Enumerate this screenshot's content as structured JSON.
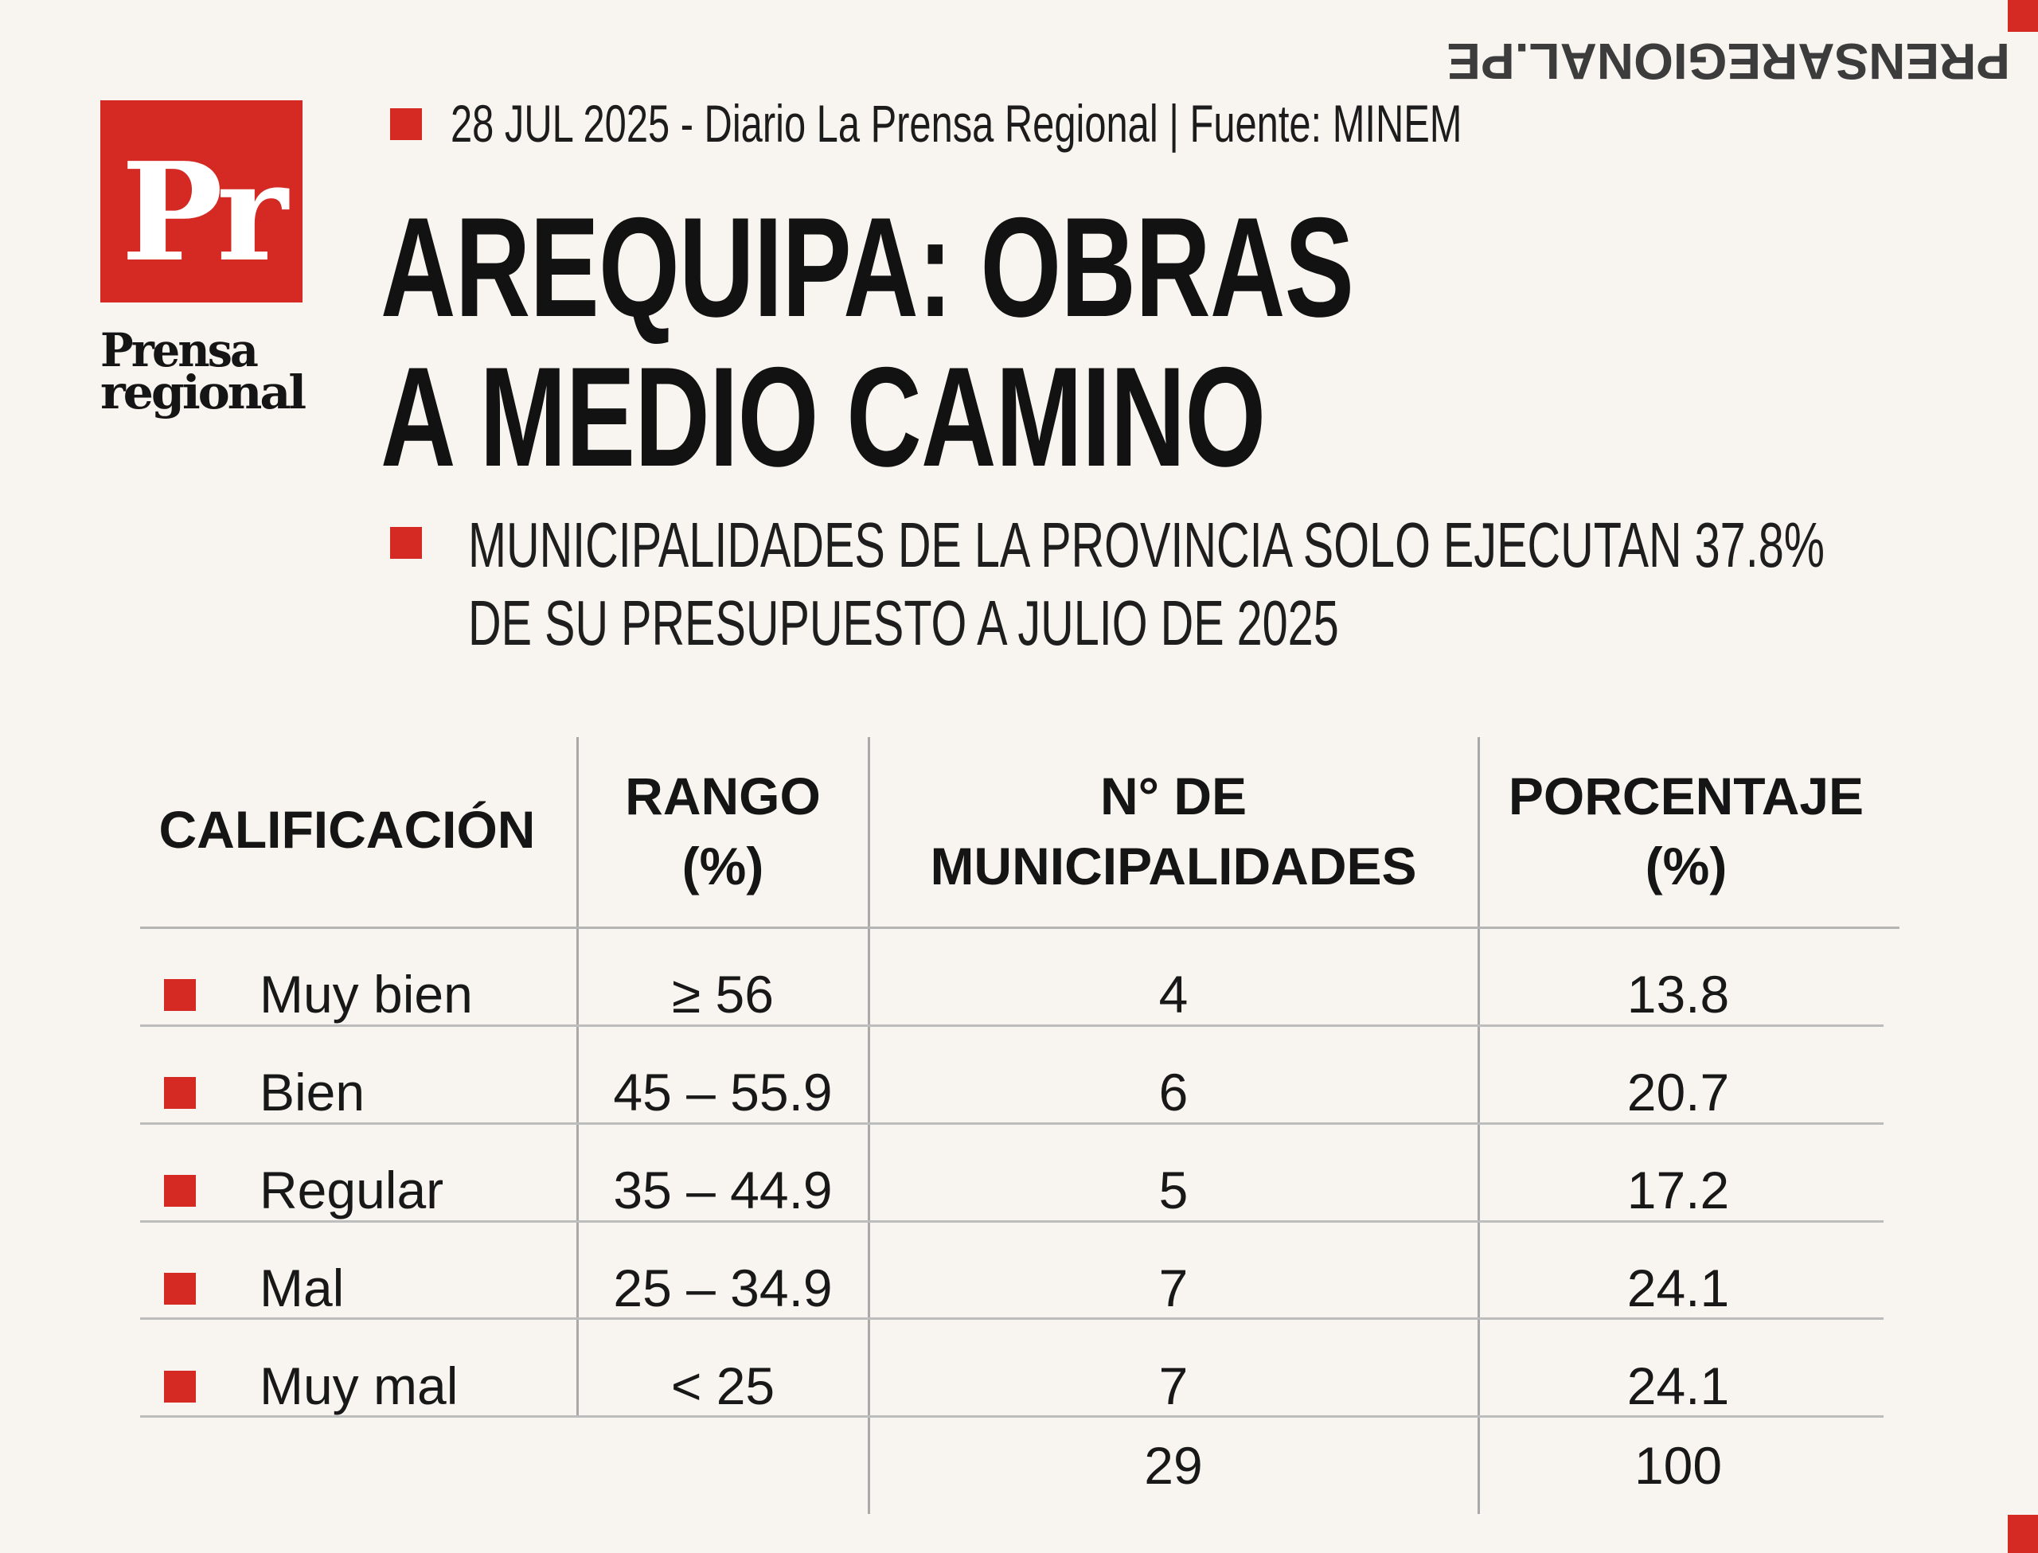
{
  "brand": {
    "logo_letters": "Pr",
    "logo_word_line1": "Prensa",
    "logo_word_line2": "regional",
    "side_url": "PRENSAREGIONAL.PE",
    "accent_color": "#d52a23"
  },
  "header": {
    "dateline": "28 JUL 2025 -  Diario La Prensa Regional | Fuente: MINEM",
    "title_line1": "AREQUIPA: OBRAS",
    "title_line2": "A MEDIO CAMINO",
    "subtitle_line1": "MUNICIPALIDADES DE LA PROVINCIA SOLO EJECUTAN 37.8%",
    "subtitle_line2": "DE SU PRESUPUESTO A JULIO DE 2025"
  },
  "chart_data": {
    "type": "table",
    "columns": [
      "CALIFICACIÓN",
      "RANGO\n(%)",
      "N° DE\nMUNICIPALIDADES",
      "PORCENTAJE\n(%)"
    ],
    "rows": [
      {
        "calificacion": "Muy bien",
        "rango": "≥ 56",
        "municipalidades": 4,
        "porcentaje": 13.8
      },
      {
        "calificacion": "Bien",
        "rango": "45 – 55.9",
        "municipalidades": 6,
        "porcentaje": 20.7
      },
      {
        "calificacion": "Regular",
        "rango": "35 – 44.9",
        "municipalidades": 5,
        "porcentaje": 17.2
      },
      {
        "calificacion": "Mal",
        "rango": "25 – 34.9",
        "municipalidades": 7,
        "porcentaje": 24.1
      },
      {
        "calificacion": "Muy mal",
        "rango": "< 25",
        "municipalidades": 7,
        "porcentaje": 24.1
      }
    ],
    "totals": {
      "municipalidades": 29,
      "porcentaje": 100
    }
  }
}
